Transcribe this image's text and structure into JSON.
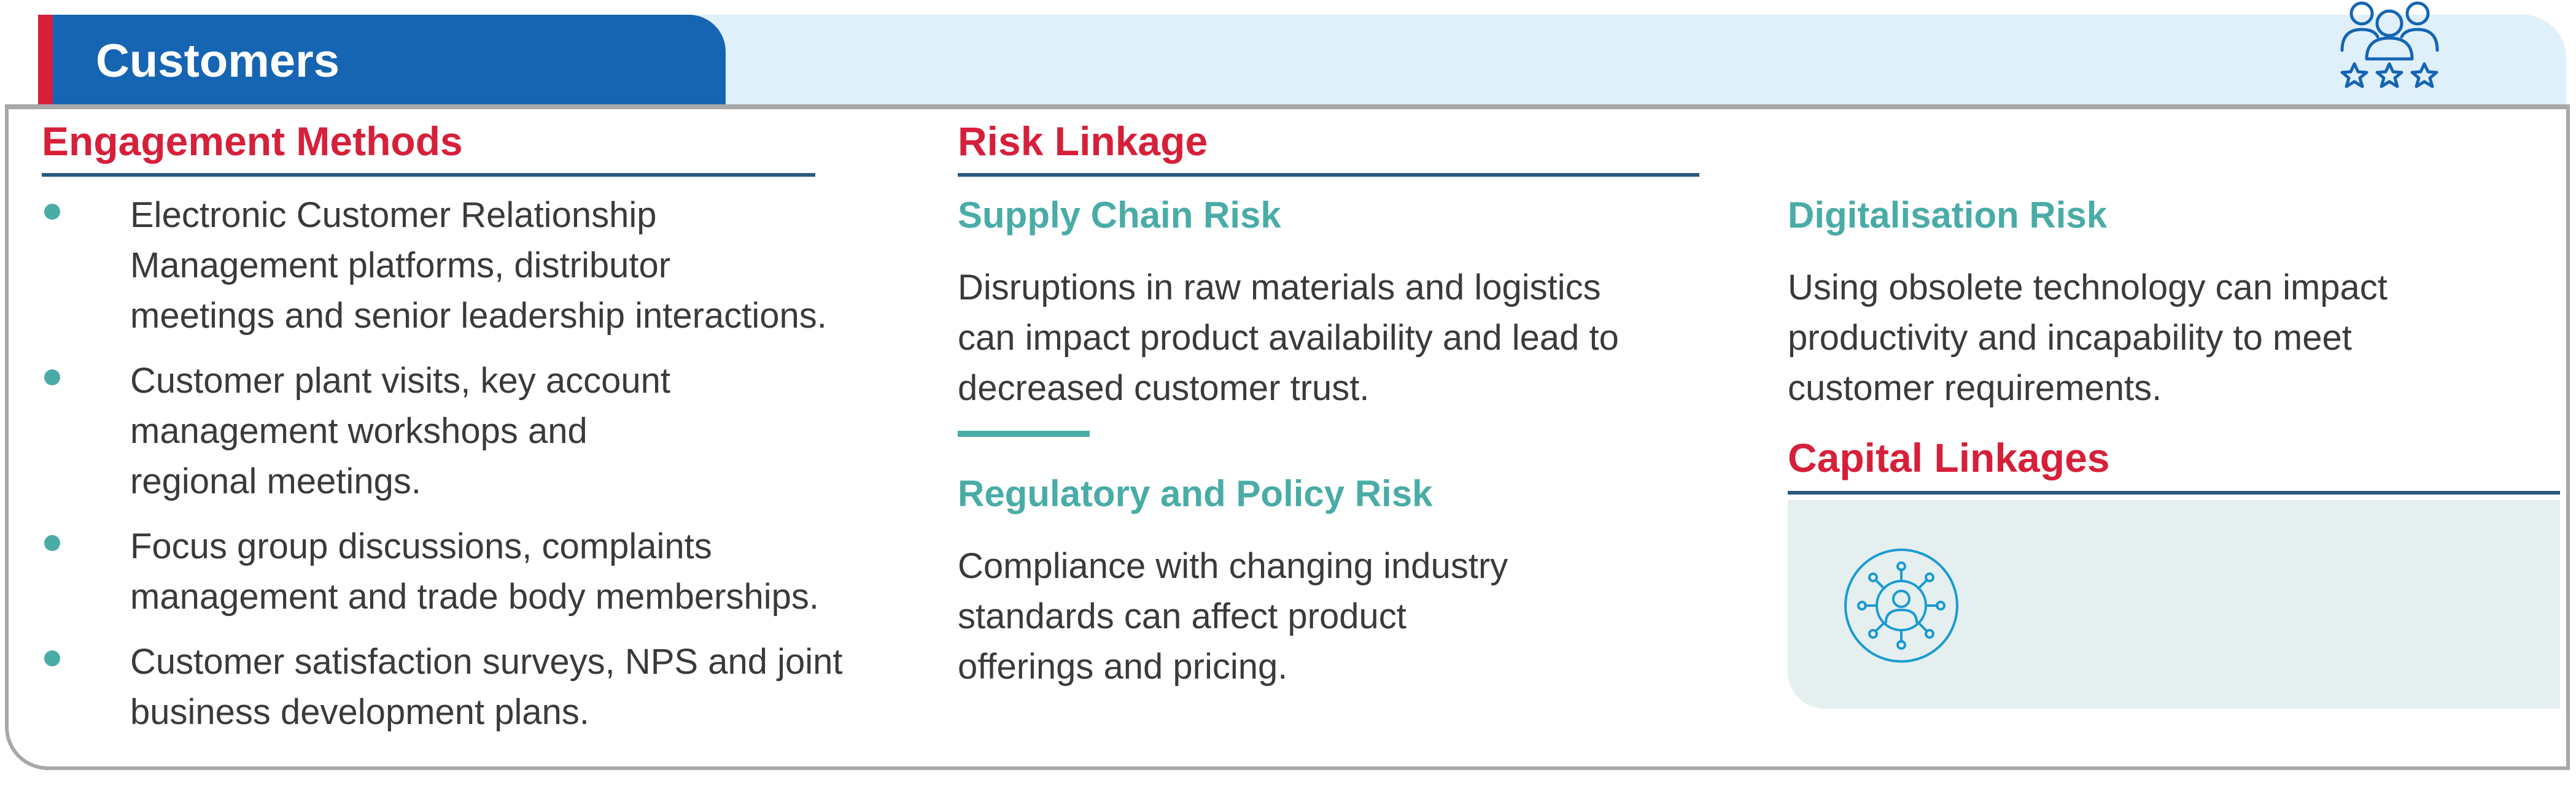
{
  "header": {
    "title": "Customers",
    "icon": "customers-rating-icon"
  },
  "engagement": {
    "title": "Engagement Methods",
    "items": [
      {
        "lines": [
          "Electronic Customer Relationship",
          "Management platforms, distributor",
          "meetings and senior leadership interactions."
        ]
      },
      {
        "lines": [
          "Customer plant visits, key account",
          "management workshops and",
          "regional meetings."
        ]
      },
      {
        "lines": [
          "Focus group discussions, complaints",
          "management and trade body memberships."
        ]
      },
      {
        "lines": [
          "Customer satisfaction surveys, NPS and joint",
          "business development plans."
        ]
      }
    ]
  },
  "risk": {
    "title": "Risk Linkage",
    "supply_chain": {
      "title": "Supply Chain Risk",
      "lines": [
        "Disruptions in raw materials and logistics",
        "can impact product availability and lead to",
        "decreased customer trust."
      ]
    },
    "regulatory": {
      "title": "Regulatory and Policy Risk",
      "lines": [
        "Compliance with changing industry",
        "standards can affect product",
        "offerings and pricing."
      ]
    },
    "digitalisation": {
      "title": "Digitalisation Risk",
      "lines": [
        "Using obsolete technology can impact",
        "productivity and incapability to meet",
        "customer requirements."
      ]
    }
  },
  "capital": {
    "title": "Capital Linkages",
    "icon": "social-relationship-capital-icon"
  },
  "colors": {
    "header_blue": "#1565b3",
    "header_band": "#e0f0fb",
    "accent_red": "#d6203a",
    "teal": "#4aaca6",
    "rule_navy": "#2a5a7e",
    "body_text": "#3a3a3a",
    "panel_bg": "#e5eff0"
  }
}
